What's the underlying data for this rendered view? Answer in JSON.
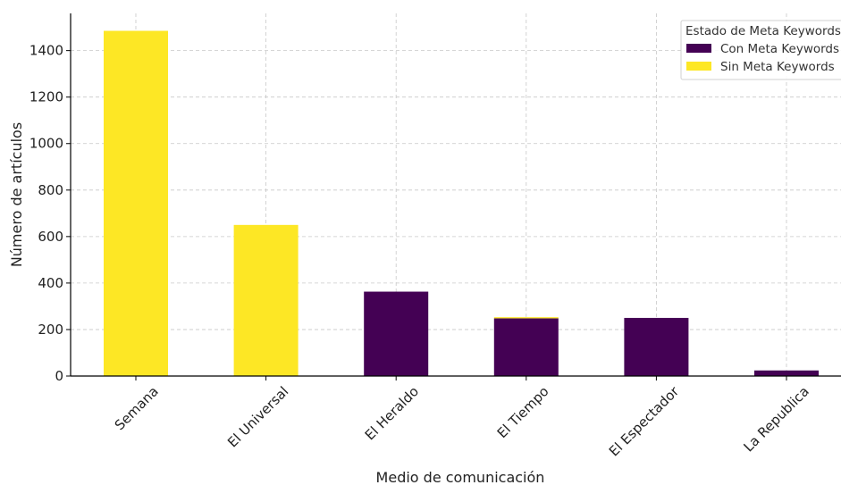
{
  "chart_data": {
    "type": "bar",
    "stacked": true,
    "title": "",
    "xlabel": "Medio de comunicación",
    "ylabel": "Número de artículos",
    "categories": [
      "Semana",
      "El Universal",
      "El Heraldo",
      "El Tiempo",
      "El Espectador",
      "La Republica"
    ],
    "series": [
      {
        "name": "Con Meta Keywords",
        "color": "#440154",
        "values": [
          0,
          0,
          363,
          248,
          250,
          24
        ]
      },
      {
        "name": "Sin Meta Keywords",
        "color": "#fde725",
        "values": [
          1485,
          650,
          0,
          5,
          0,
          0
        ]
      }
    ],
    "ylim": [
      0,
      1560
    ],
    "yticks": [
      0,
      200,
      400,
      600,
      800,
      1000,
      1200,
      1400
    ],
    "grid": true,
    "legend": {
      "title": "Estado de Meta Keywords",
      "position": "top-right"
    }
  }
}
